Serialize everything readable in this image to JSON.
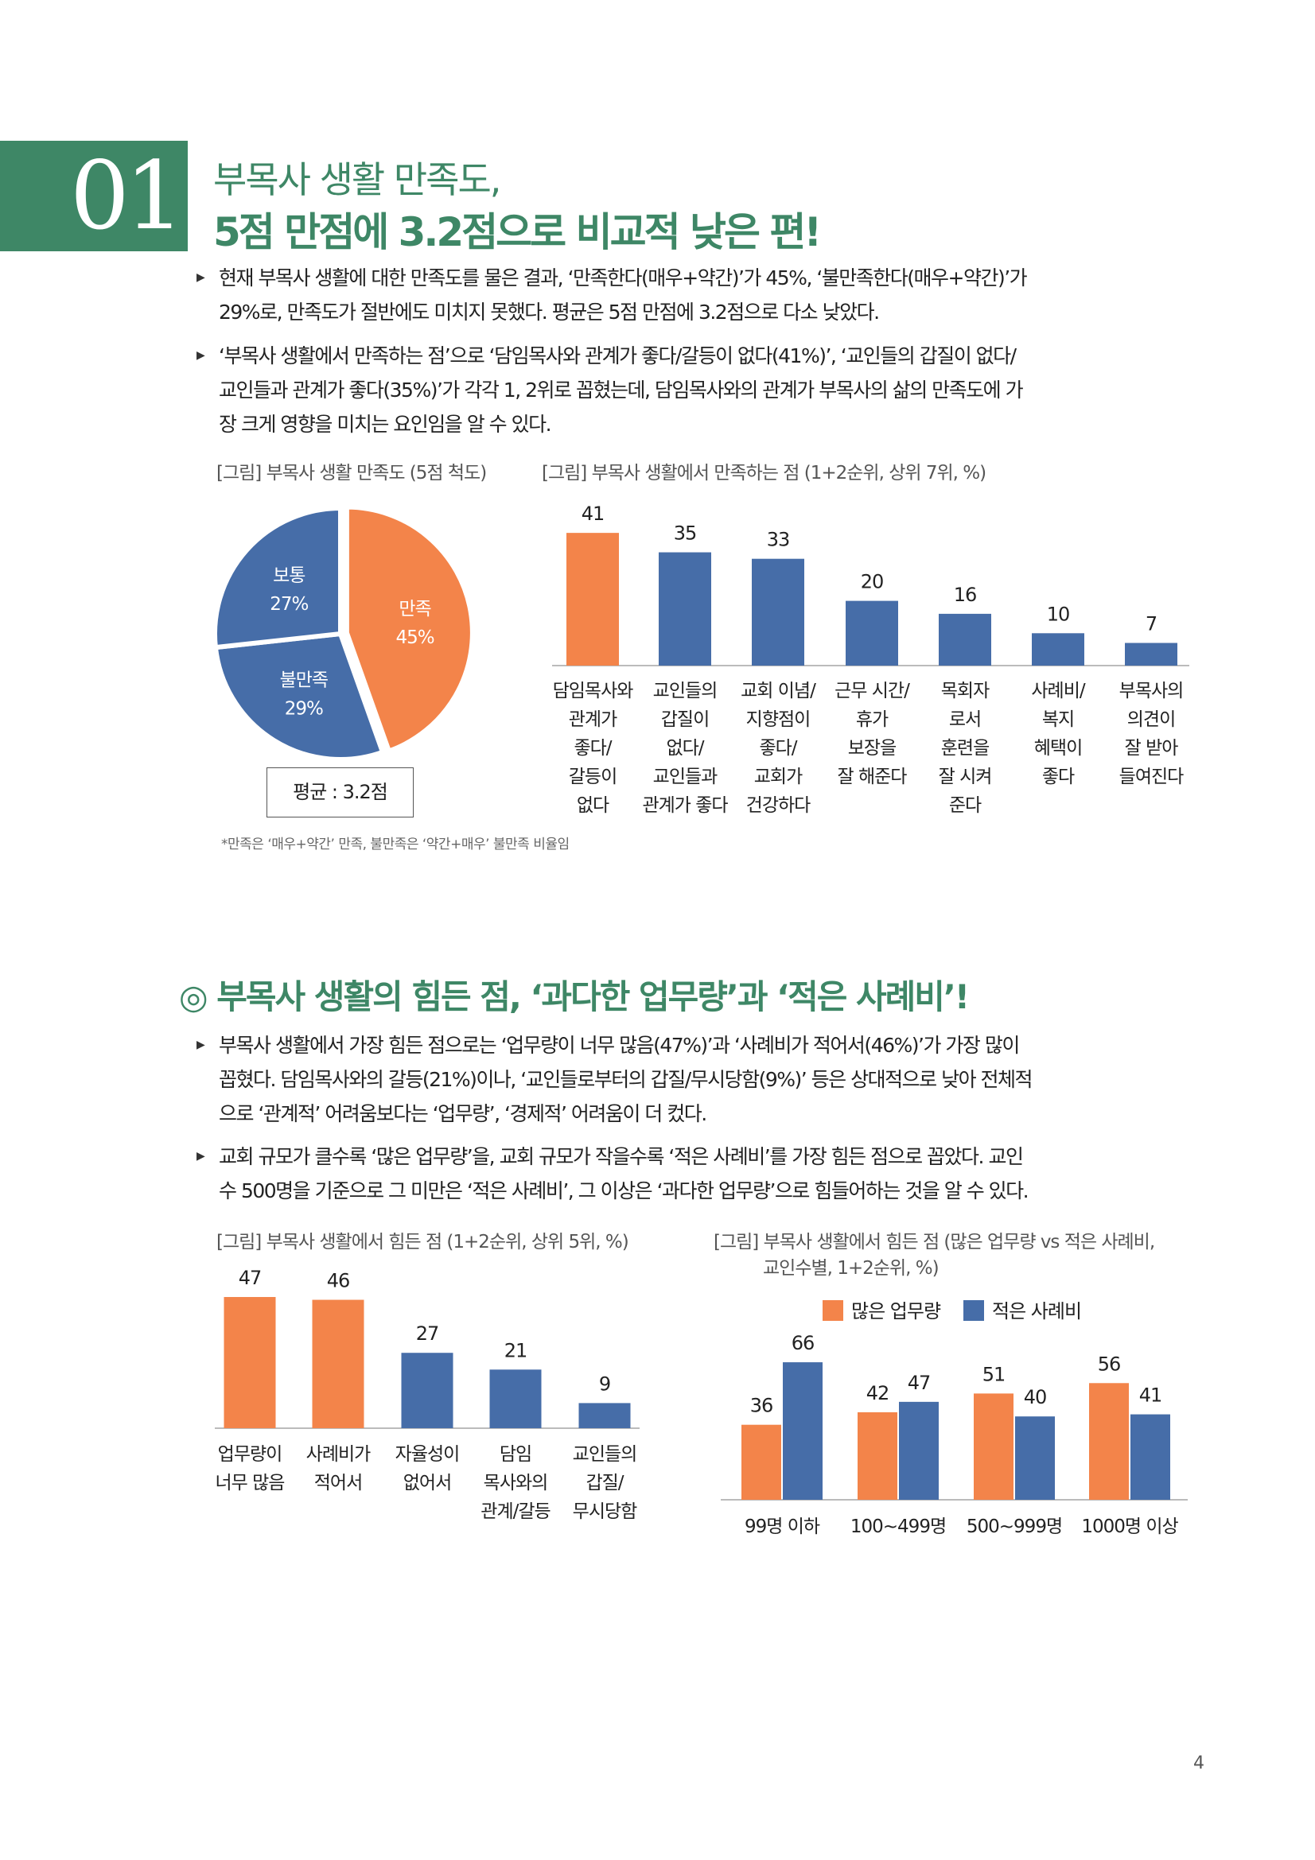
{
  "colors": {
    "green": "#3E8766",
    "orange": "#F3844A",
    "blue": "#466DA8"
  },
  "section1": {
    "number": "01",
    "title_line1": "부목사 생활 만족도,",
    "title_line2": "5점 만점에 3.2점으로 비교적 낮은 편!",
    "bullets": [
      [
        "현재 부목사 생활에 대한 만족도를 물은 결과, ‘만족한다(매우+약간)’가 45%, ‘불만족한다(매우+약간)’가",
        "29%로, 만족도가 절반에도 미치지 못했다. 평균은 5점 만점에 3.2점으로 다소 낮았다."
      ],
      [
        "‘부목사 생활에서 만족하는 점’으로 ‘담임목사와 관계가 좋다/갈등이 없다(41%)’, ‘교인들의 갑질이 없다/",
        "교인들과 관계가 좋다(35%)’가 각각 1, 2위로 꼽혔는데, 담임목사와의 관계가 부목사의 삶의 만족도에 가",
        "장 크게 영향을 미치는 요인임을 알 수 있다."
      ]
    ],
    "pie_caption": "[그림] 부목사 생활 만족도 (5점 척도)",
    "bar_caption": "[그림] 부목사 생활에서 만족하는 점 (1+2순위, 상위 7위, %)",
    "average": "평균 : 3.2점",
    "footnote": "*만족은 ‘매우+약간’ 만족, 불만족은 ‘약간+매우’ 불만족 비율임"
  },
  "section2": {
    "heading": "◎ 부목사 생활의 힘든 점, ‘과다한 업무량’과 ‘적은 사례비’!",
    "bullets": [
      [
        "부목사 생활에서 가장 힘든 점으로는 ‘업무량이 너무 많음(47%)’과 ‘사례비가 적어서(46%)’가 가장 많이",
        "꼽혔다. 담임목사와의 갈등(21%)이나, ‘교인들로부터의 갑질/무시당함(9%)’ 등은 상대적으로 낮아 전체적",
        "으로 ‘관계적’ 어려움보다는 ‘업무량’, ‘경제적’ 어려움이 더 컸다."
      ],
      [
        "교회 규모가 클수록 ‘많은 업무량’을, 교회 규모가 작을수록 ‘적은 사례비’를 가장 힘든 점으로 꼽았다. 교인",
        "수 500명을 기준으로 그 미만은 ‘적은 사례비’, 그 이상은 ‘과다한 업무량’으로 힘들어하는 것을 알 수 있다."
      ]
    ],
    "bar_caption": "[그림] 부목사 생활에서 힘든 점 (1+2순위, 상위 5위, %)",
    "group_caption_line1": "[그림] 부목사 생활에서 힘든 점 (많은 업무량 vs 적은 사례비,",
    "group_caption_line2": "교인수별, 1+2순위, %)"
  },
  "page_number": "4",
  "chart_data": [
    {
      "type": "pie",
      "title": "부목사 생활 만족도 (5점 척도)",
      "slices": [
        {
          "label": "만족",
          "value": 45,
          "display": "45%",
          "color": "orange"
        },
        {
          "label": "불만족",
          "value": 29,
          "display": "29%",
          "color": "blue"
        },
        {
          "label": "보통",
          "value": 27,
          "display": "27%",
          "color": "blue"
        }
      ]
    },
    {
      "type": "bar",
      "title": "부목사 생활에서 만족하는 점 (1+2순위, 상위 7위, %)",
      "ylim": [
        0,
        45
      ],
      "categories": [
        [
          "담임목사와",
          "관계가",
          "좋다/",
          "갈등이",
          "없다"
        ],
        [
          "교인들의",
          "갑질이",
          "없다/",
          "교인들과",
          "관계가 좋다"
        ],
        [
          "교회 이념/",
          "지향점이",
          "좋다/",
          "교회가",
          "건강하다"
        ],
        [
          "근무 시간/",
          "휴가",
          "보장을",
          "잘 해준다"
        ],
        [
          "목회자",
          "로서",
          "훈련을",
          "잘 시켜",
          "준다"
        ],
        [
          "사례비/",
          "복지",
          "혜택이",
          "좋다"
        ],
        [
          "부목사의",
          "의견이",
          "잘 받아",
          "들여진다"
        ]
      ],
      "values": [
        41,
        35,
        33,
        20,
        16,
        10,
        7
      ],
      "highlight": [
        0
      ]
    },
    {
      "type": "bar",
      "title": "부목사 생활에서 힘든 점 (1+2순위, 상위 5위, %)",
      "ylim": [
        0,
        50
      ],
      "categories": [
        [
          "업무량이",
          "너무 많음"
        ],
        [
          "사례비가",
          "적어서"
        ],
        [
          "자율성이",
          "없어서"
        ],
        [
          "담임",
          "목사와의",
          "관계/갈등"
        ],
        [
          "교인들의",
          "갑질/",
          "무시당함"
        ]
      ],
      "values": [
        47,
        46,
        27,
        21,
        9
      ],
      "highlight": [
        0,
        1
      ]
    },
    {
      "type": "bar",
      "title": "부목사 생활에서 힘든 점 (많은 업무량 vs 적은 사례비, 교인수별, 1+2순위, %)",
      "ylim": [
        0,
        70
      ],
      "categories": [
        "99명 이하",
        "100~499명",
        "500~999명",
        "1000명 이상"
      ],
      "series": [
        {
          "name": "많은 업무량",
          "values": [
            36,
            42,
            51,
            56
          ],
          "color": "orange"
        },
        {
          "name": "적은 사례비",
          "values": [
            66,
            47,
            40,
            41
          ],
          "color": "blue"
        }
      ],
      "legend": "top"
    }
  ]
}
